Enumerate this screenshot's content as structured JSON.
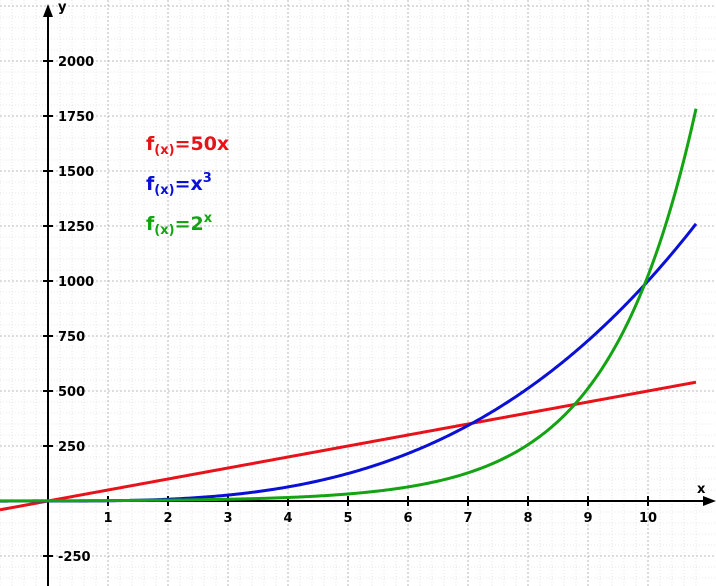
{
  "chart_data": {
    "type": "line",
    "title": "",
    "xlabel": "x",
    "ylabel": "y",
    "xlim": [
      -0.8,
      10.8
    ],
    "ylim": [
      -380,
      2250
    ],
    "grid": true,
    "x_ticks": [
      1,
      2,
      3,
      4,
      5,
      6,
      7,
      8,
      9,
      10
    ],
    "y_ticks": [
      -250,
      250,
      500,
      750,
      1000,
      1250,
      1500,
      1750,
      2000
    ],
    "series": [
      {
        "name": "f(x)=50x",
        "color": "#e8121a",
        "function": "50*x",
        "label": {
          "main": "f",
          "sub": "(x)",
          "expr": "=50x",
          "sup": ""
        },
        "x": [
          -0.8,
          0,
          2,
          4,
          6,
          7,
          8,
          10,
          10.8
        ],
        "y": [
          -40,
          0,
          100,
          200,
          300,
          350,
          400,
          500,
          540
        ]
      },
      {
        "name": "f(x)=x3",
        "color": "#0a10d6",
        "function": "x^3",
        "label": {
          "main": "f",
          "sub": "(x)",
          "expr": "=x",
          "sup": "3"
        },
        "x": [
          -0.8,
          0,
          2,
          4,
          6,
          7,
          8,
          9,
          10,
          10.8
        ],
        "y": [
          -0.51,
          0,
          8,
          64,
          216,
          343,
          512,
          729,
          1000,
          1259.7
        ]
      },
      {
        "name": "f(x)=2x",
        "color": "#13a313",
        "function": "2^x",
        "label": {
          "main": "f",
          "sub": "(x)",
          "expr": "=2",
          "sup": "x"
        },
        "x": [
          -0.8,
          0,
          2,
          4,
          6,
          7,
          8,
          9,
          10,
          10.8
        ],
        "y": [
          0.57,
          1,
          4,
          16,
          64,
          128,
          256,
          512,
          1024,
          1782.9
        ]
      }
    ]
  }
}
